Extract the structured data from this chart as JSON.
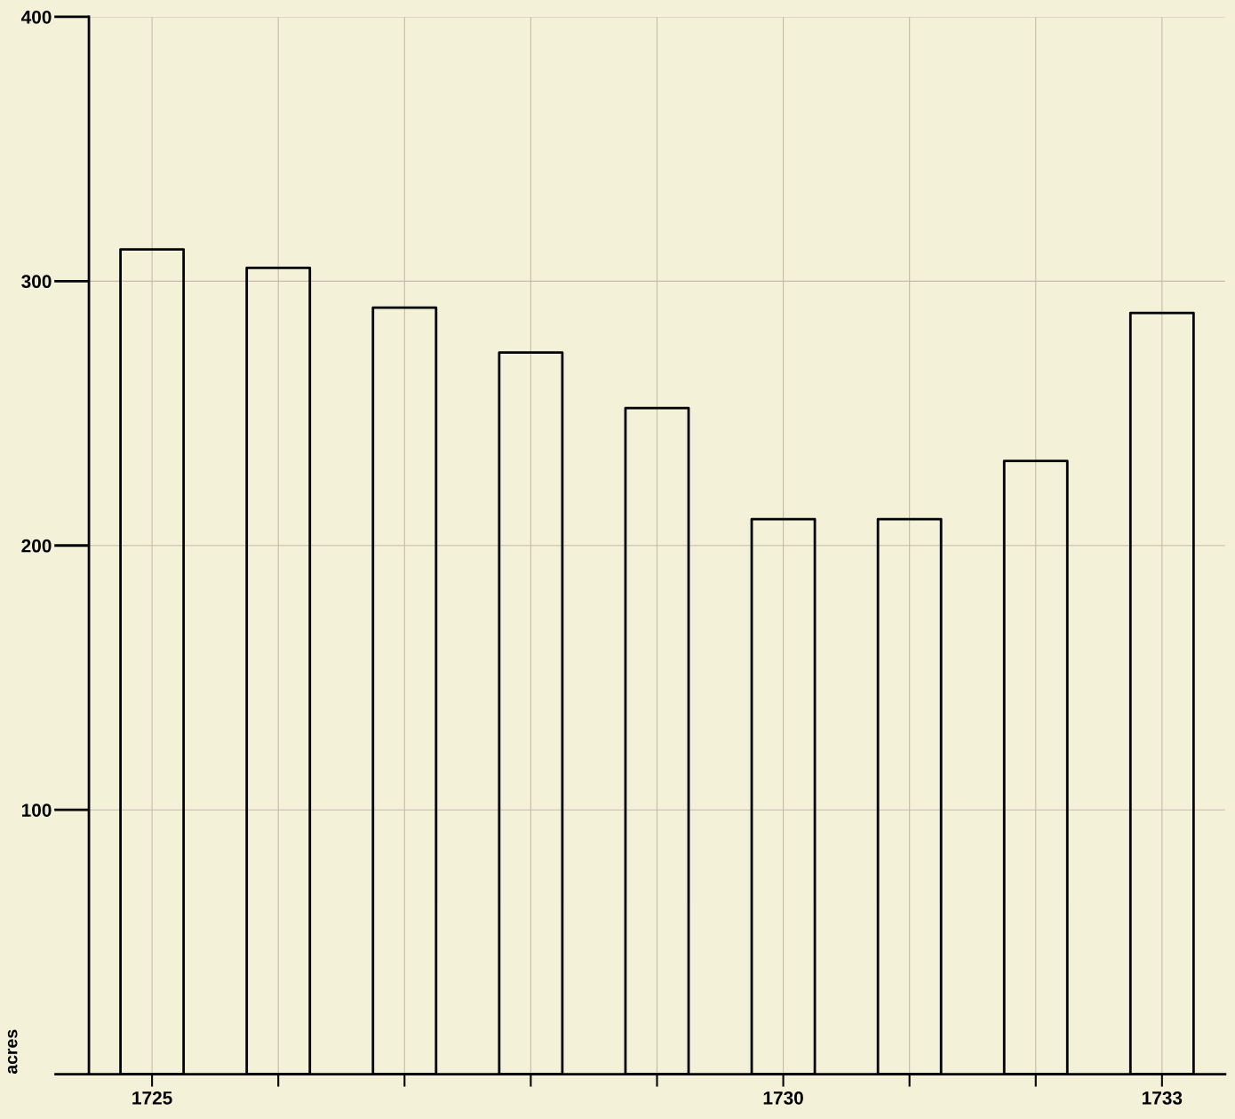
{
  "chart_data": {
    "type": "bar",
    "ylabel": "acres",
    "categories": [
      "1725",
      null,
      null,
      null,
      null,
      "1730",
      null,
      null,
      "1733"
    ],
    "values": [
      312,
      305,
      290,
      273,
      252,
      210,
      210,
      232,
      288
    ],
    "color": "#000000",
    "ylim": [
      0,
      400
    ],
    "yticks": [
      {
        "value": 0,
        "label": null
      },
      100,
      200,
      300,
      400
    ],
    "grid": true
  }
}
